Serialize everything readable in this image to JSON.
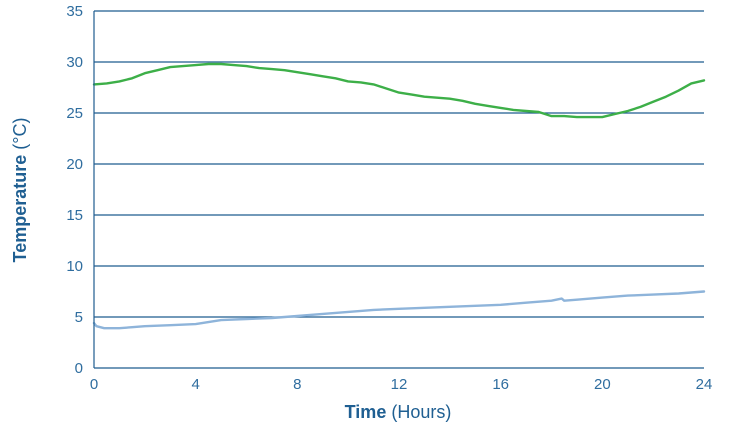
{
  "chart_data": {
    "type": "line",
    "xlabel_bold": "Time",
    "xlabel_rest": " (Hours)",
    "ylabel_bold": "Temperature",
    "ylabel_rest": " (°C)",
    "xlim": [
      0,
      24
    ],
    "ylim": [
      0,
      35
    ],
    "x_ticks": [
      0,
      4,
      8,
      12,
      16,
      20,
      24
    ],
    "y_ticks": [
      0,
      5,
      10,
      15,
      20,
      25,
      30,
      35
    ],
    "grid": "horizontal",
    "colors": {
      "series_upper": "#3daf48",
      "series_lower": "#8eb4da",
      "axis": "#1f5c8f"
    },
    "series": [
      {
        "x": [
          0,
          0.5,
          1,
          1.5,
          2,
          2.5,
          3,
          3.5,
          4,
          4.5,
          5,
          5.5,
          6,
          6.5,
          7,
          7.5,
          8,
          8.5,
          9,
          9.5,
          10,
          10.5,
          11,
          11.5,
          12,
          12.5,
          13,
          13.5,
          14,
          14.5,
          15,
          15.5,
          16,
          16.5,
          17,
          17.5,
          18,
          18.5,
          19,
          19.5,
          20,
          20.5,
          21,
          21.5,
          22,
          22.5,
          23,
          23.5,
          24
        ],
        "y": [
          27.8,
          27.9,
          28.1,
          28.4,
          28.9,
          29.2,
          29.5,
          29.6,
          29.7,
          29.8,
          29.8,
          29.7,
          29.6,
          29.4,
          29.3,
          29.2,
          29.0,
          28.8,
          28.6,
          28.4,
          28.1,
          28.0,
          27.8,
          27.4,
          27.0,
          26.8,
          26.6,
          26.5,
          26.4,
          26.2,
          25.9,
          25.7,
          25.5,
          25.3,
          25.2,
          25.1,
          24.7,
          24.7,
          24.6,
          24.6,
          24.6,
          24.9,
          25.2,
          25.6,
          26.1,
          26.6,
          27.2,
          27.9,
          28.2
        ]
      },
      {
        "x": [
          0,
          0.1,
          0.4,
          1,
          1.5,
          2,
          3,
          4,
          4.5,
          5,
          6,
          7,
          8,
          9,
          10,
          11,
          12,
          13,
          14,
          15,
          16,
          17,
          18,
          18.4,
          18.5,
          19,
          20,
          21,
          22,
          23,
          24
        ],
        "y": [
          4.4,
          4.1,
          3.9,
          3.9,
          4.0,
          4.1,
          4.2,
          4.3,
          4.5,
          4.7,
          4.8,
          4.9,
          5.1,
          5.3,
          5.5,
          5.7,
          5.8,
          5.9,
          6.0,
          6.1,
          6.2,
          6.4,
          6.6,
          6.8,
          6.6,
          6.7,
          6.9,
          7.1,
          7.2,
          7.3,
          7.5
        ]
      }
    ]
  }
}
